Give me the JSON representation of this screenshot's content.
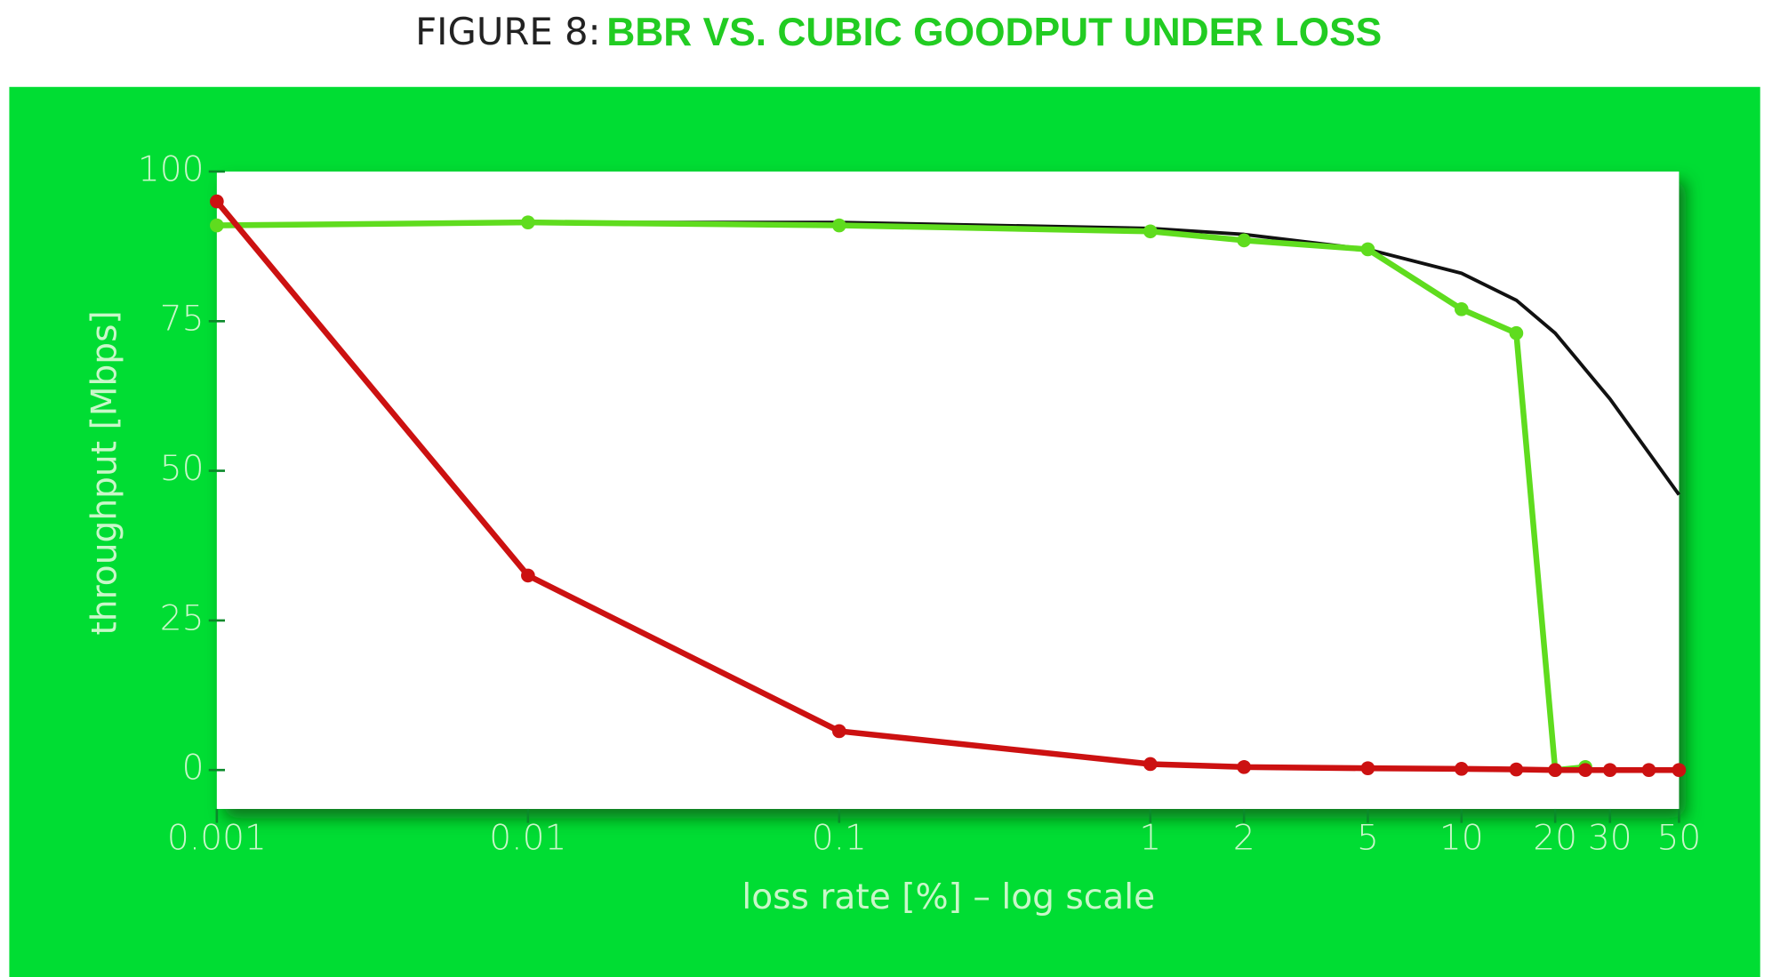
{
  "chart_data": {
    "type": "line",
    "title": [
      "FIGURE 8:",
      "BBR VS. CUBIC GOODPUT UNDER LOSS"
    ],
    "x_label": "loss rate [%] – log scale",
    "y_label": "throughput [Mbps]",
    "xscale": "log",
    "xlim": [
      0.001,
      50
    ],
    "xticks": [
      0.001,
      0.01,
      0.1,
      1,
      2,
      5,
      10,
      20,
      30,
      50
    ],
    "ylim": [
      -6.5,
      100
    ],
    "yticks": [
      0,
      25,
      50,
      75,
      100
    ],
    "grid": false,
    "series": [
      {
        "color": "#111111",
        "markers": false,
        "x": [
          0.001,
          0.01,
          0.1,
          1,
          2,
          5,
          10,
          15,
          20,
          30,
          40,
          50
        ],
        "values": [
          91,
          91.5,
          91.5,
          90.5,
          89.5,
          87,
          83,
          78.5,
          73,
          62,
          53,
          46
        ]
      },
      {
        "color": "#5fdc1e",
        "markers": true,
        "x": [
          0.001,
          0.01,
          0.1,
          1,
          2,
          5,
          10,
          15,
          20,
          25
        ],
        "values": [
          91,
          91.5,
          91,
          90,
          88.5,
          87,
          77,
          73,
          0,
          0.5
        ]
      },
      {
        "color": "#cc1111",
        "markers": true,
        "x": [
          0.001,
          0.01,
          0.1,
          1,
          2,
          5,
          10,
          15,
          20,
          25,
          30,
          40,
          50
        ],
        "values": [
          95,
          32.5,
          6.5,
          1,
          0.5,
          0.3,
          0.2,
          0.1,
          0,
          0,
          0,
          0,
          0
        ]
      }
    ]
  }
}
